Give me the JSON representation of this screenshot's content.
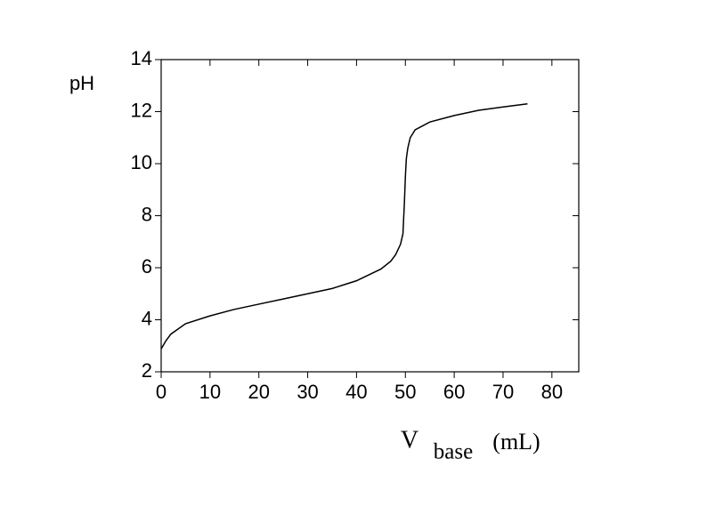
{
  "chart_data": {
    "type": "line",
    "y_label": "pH",
    "x_label": {
      "main": "V",
      "sub": "base",
      "unit": "(mL)"
    },
    "x": [
      0,
      1,
      2,
      5,
      10,
      15,
      20,
      25,
      30,
      35,
      40,
      45,
      47,
      48,
      49,
      49.5,
      49.8,
      50,
      50.2,
      50.5,
      51,
      52,
      55,
      60,
      65,
      70,
      75
    ],
    "series": [
      {
        "name": "pH",
        "color": "#000000",
        "values": [
          2.88,
          3.2,
          3.45,
          3.85,
          4.15,
          4.4,
          4.6,
          4.8,
          5.0,
          5.2,
          5.5,
          5.95,
          6.25,
          6.5,
          6.9,
          7.3,
          8.5,
          9.5,
          10.2,
          10.6,
          11.0,
          11.3,
          11.6,
          11.85,
          12.05,
          12.18,
          12.3
        ]
      }
    ],
    "xlim": [
      0,
      85.5
    ],
    "xticks": [
      0,
      10,
      20,
      30,
      40,
      50,
      60,
      70,
      80
    ],
    "ylim": [
      2,
      14
    ],
    "yticks": [
      2,
      4,
      6,
      8,
      10,
      12,
      14
    ]
  }
}
